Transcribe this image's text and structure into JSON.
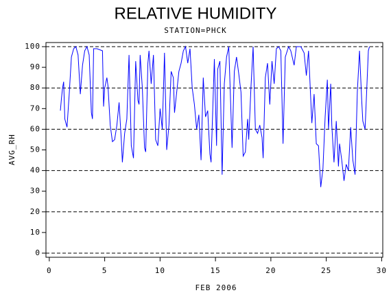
{
  "chart_data": {
    "type": "line",
    "title": "RELATIVE HUMIDITY",
    "subtitle": "STATION=PHCK",
    "x_label": "FEB 2006",
    "y_label": "AVG_RH",
    "xlim": [
      -0.3,
      30.1
    ],
    "ylim": [
      -2,
      102
    ],
    "xticks": [
      0,
      5,
      10,
      15,
      20,
      25,
      30
    ],
    "yticks": [
      0,
      10,
      20,
      30,
      40,
      50,
      60,
      70,
      80,
      90,
      100
    ],
    "grid_lines": [
      0,
      20,
      40,
      60,
      80,
      100
    ],
    "series": [
      {
        "color": "#0000ff",
        "x": [
          1.0,
          1.1,
          1.2,
          1.3,
          1.4,
          1.6,
          1.8,
          2.0,
          2.2,
          2.4,
          2.6,
          2.8,
          3.0,
          3.2,
          3.4,
          3.6,
          3.8,
          3.9,
          4.0,
          4.3,
          4.8,
          4.9,
          5.0,
          5.2,
          5.3,
          5.5,
          5.7,
          5.9,
          6.1,
          6.3,
          6.5,
          6.6,
          6.8,
          7.0,
          7.2,
          7.4,
          7.6,
          7.8,
          8.0,
          8.1,
          8.2,
          8.4,
          8.6,
          8.7,
          8.9,
          9.0,
          9.2,
          9.4,
          9.6,
          9.8,
          10.0,
          10.2,
          10.4,
          10.6,
          10.8,
          11.0,
          11.2,
          11.3,
          11.5,
          11.7,
          11.9,
          12.1,
          12.3,
          12.5,
          12.7,
          12.9,
          13.1,
          13.3,
          13.5,
          13.7,
          13.9,
          14.1,
          14.3,
          14.5,
          14.6,
          14.9,
          15.1,
          15.2,
          15.4,
          15.6,
          15.8,
          16.0,
          16.2,
          16.4,
          16.5,
          16.7,
          16.9,
          17.1,
          17.3,
          17.5,
          17.7,
          17.9,
          18.0,
          18.2,
          18.4,
          18.6,
          18.8,
          19.0,
          19.2,
          19.3,
          19.5,
          19.7,
          19.9,
          20.1,
          20.3,
          20.5,
          20.7,
          20.9,
          21.1,
          21.3,
          21.6,
          21.8,
          22.1,
          22.3,
          22.7,
          23.0,
          23.2,
          23.4,
          23.7,
          23.9,
          24.1,
          24.3,
          24.5,
          24.7,
          24.9,
          25.1,
          25.2,
          25.4,
          25.5,
          25.7,
          25.9,
          26.1,
          26.2,
          26.4,
          26.6,
          26.8,
          27.0,
          27.2,
          27.4,
          27.6,
          27.8,
          28.0,
          28.2,
          28.3,
          28.5,
          28.8,
          28.9
        ],
        "values": [
          69,
          75,
          80,
          83,
          65,
          61,
          77,
          95,
          99,
          100,
          96,
          77,
          91,
          98,
          100,
          96,
          68,
          65,
          99,
          99,
          98,
          71,
          80,
          85,
          81,
          62,
          54,
          55,
          62,
          73,
          55,
          44,
          58,
          65,
          96,
          52,
          46,
          93,
          74,
          72,
          96,
          80,
          51,
          49,
          92,
          98,
          82,
          96,
          55,
          52,
          70,
          60,
          97,
          50,
          62,
          88,
          85,
          68,
          78,
          88,
          92,
          98,
          100,
          92,
          99,
          80,
          72,
          60,
          67,
          45,
          85,
          66,
          69,
          48,
          44,
          94,
          52,
          89,
          93,
          38,
          82,
          95,
          100,
          68,
          51,
          88,
          95,
          87,
          78,
          47,
          49,
          65,
          55,
          80,
          100,
          60,
          58,
          62,
          56,
          46,
          85,
          92,
          72,
          93,
          82,
          99,
          100,
          98,
          53,
          95,
          100,
          98,
          91,
          100,
          100,
          97,
          86,
          98,
          63,
          77,
          53,
          52,
          32,
          41,
          66,
          84,
          60,
          82,
          62,
          44,
          64,
          42,
          53,
          45,
          35,
          43,
          40,
          61,
          45,
          38,
          78,
          98,
          74,
          64,
          60,
          98,
          100
        ]
      }
    ]
  }
}
